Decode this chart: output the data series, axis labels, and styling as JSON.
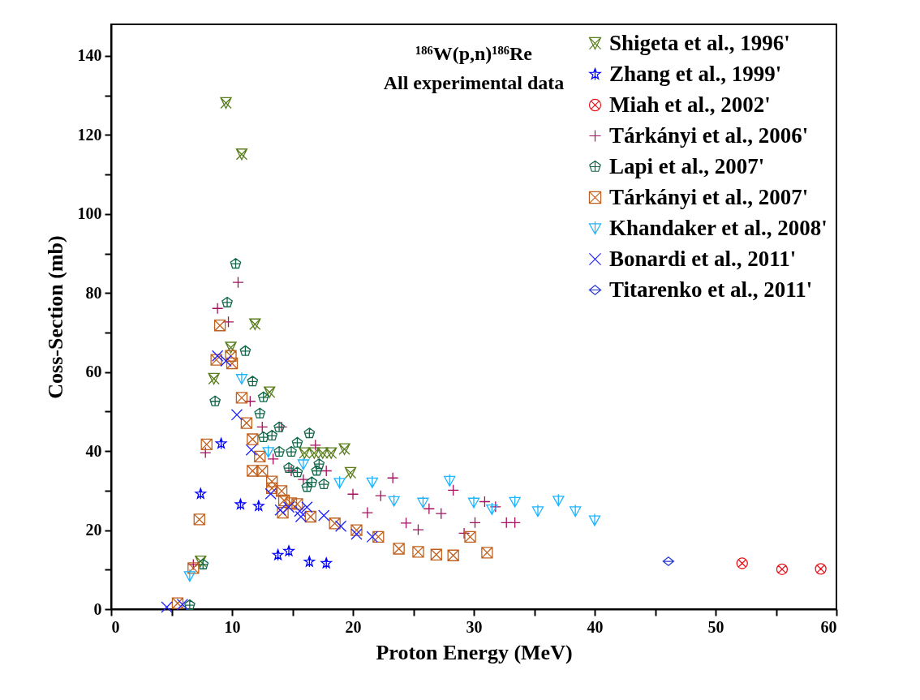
{
  "chart_data": {
    "type": "scatter",
    "title": "¹⁸⁶W(p,n)¹⁸⁶Re",
    "subtitle": "All experimental data",
    "xlabel": "Proton Energy (MeV)",
    "ylabel": "Coss-Section (mb)",
    "xlim": [
      0,
      60
    ],
    "xticks": [
      0,
      {
        "value": 5,
        "label": null
      },
      10,
      {
        "value": 15,
        "label": null
      },
      20,
      {
        "value": 25,
        "label": null
      },
      30,
      {
        "value": 35,
        "label": null
      },
      40,
      {
        "value": 45,
        "label": null
      },
      50,
      {
        "value": 55,
        "label": null
      },
      60
    ],
    "ylim": [
      0,
      148
    ],
    "yticks": [
      0,
      {
        "value": 10,
        "label": null
      },
      20,
      {
        "value": 30,
        "label": null
      },
      40,
      {
        "value": 50,
        "label": null
      },
      60,
      {
        "value": 70,
        "label": null
      },
      80,
      {
        "value": 90,
        "label": null
      },
      100,
      {
        "value": 110,
        "label": null
      },
      120,
      {
        "value": 130,
        "label": null
      },
      140
    ],
    "grid": false,
    "legend": "top right",
    "series": [
      {
        "name": "Shigeta et al., 1996'",
        "color": "#5a7d1e",
        "x": [
          9.5,
          10.8,
          11.9,
          9.9,
          8.5,
          13.1,
          16.0,
          16.8,
          17.5,
          18.2,
          19.3,
          19.8,
          7.4
        ],
        "values": [
          128.1,
          115.1,
          72.1,
          66.2,
          58.3,
          54.9,
          39.5,
          39.5,
          39.5,
          39.5,
          40.5,
          34.5,
          12.1
        ]
      },
      {
        "name": "Zhang et al., 1999'",
        "color": "#0000ff",
        "x": [
          9.1,
          7.4,
          10.7,
          12.2,
          13.8,
          14.7,
          16.4,
          17.8
        ],
        "values": [
          41.9,
          29.2,
          26.5,
          26.1,
          13.7,
          14.7,
          12.0,
          11.6
        ]
      },
      {
        "name": "Miah et al., 2002'",
        "color": "#e8161c",
        "x": [
          52.2,
          55.5,
          58.7
        ],
        "values": [
          11.6,
          10.1,
          10.2
        ]
      },
      {
        "name": "Tárkányi et al., 2006'",
        "color": "#a3125e",
        "x": [
          10.5,
          8.8,
          9.7,
          11.5,
          7.8,
          12.5,
          14.1,
          13.4,
          16.9,
          17.8,
          14.9,
          15.9,
          20.0,
          23.3,
          22.3,
          21.2,
          24.4,
          25.4,
          26.3,
          27.3,
          28.3,
          30.1,
          29.2,
          30.9,
          31.8,
          32.7,
          33.4,
          6.8
        ],
        "values": [
          82.7,
          76.1,
          72.7,
          52.6,
          39.6,
          46.1,
          46.1,
          38.0,
          41.5,
          35.0,
          35.0,
          32.8,
          29.1,
          33.2,
          28.7,
          24.4,
          21.8,
          20.1,
          25.4,
          24.2,
          30.1,
          21.9,
          19.2,
          27.2,
          25.9,
          21.9,
          21.9,
          11.3
        ]
      },
      {
        "name": "Lapi et al., 2007'",
        "color": "#13684a",
        "x": [
          10.3,
          9.6,
          11.1,
          11.7,
          8.6,
          12.6,
          12.3,
          12.6,
          13.3,
          13.9,
          16.4,
          15.4,
          13.9,
          14.9,
          14.7,
          15.4,
          17.2,
          17.0,
          16.6,
          16.2,
          17.6,
          7.6,
          6.5
        ],
        "values": [
          87.4,
          77.6,
          65.3,
          57.6,
          52.6,
          53.6,
          49.5,
          43.5,
          43.9,
          46.0,
          44.5,
          42.1,
          39.8,
          39.8,
          35.7,
          34.6,
          36.7,
          35.0,
          32.1,
          30.9,
          31.6,
          11.3,
          1.0
        ]
      },
      {
        "name": "Tárkányi et al., 2007'",
        "color": "#c0601e",
        "x": [
          9.0,
          8.7,
          9.9,
          10.0,
          10.8,
          11.2,
          7.9,
          11.7,
          12.3,
          11.7,
          12.5,
          13.3,
          13.3,
          14.1,
          14.3,
          14.2,
          14.9,
          15.4,
          16.5,
          18.5,
          20.3,
          7.3,
          6.8,
          5.5,
          22.1,
          23.8,
          25.4,
          26.9,
          28.3,
          29.7,
          31.1
        ],
        "values": [
          71.8,
          63.1,
          64.1,
          62.2,
          53.5,
          47.1,
          41.7,
          43.0,
          38.6,
          35.0,
          35.0,
          32.3,
          30.6,
          29.9,
          27.5,
          24.4,
          26.8,
          26.6,
          23.4,
          21.7,
          20.0,
          22.7,
          10.4,
          1.5,
          18.3,
          15.3,
          14.5,
          13.8,
          13.6,
          18.3,
          14.3
        ]
      },
      {
        "name": "Khandaker et al., 2008'",
        "color": "#1eb4ff",
        "x": [
          10.8,
          13.0,
          15.9,
          18.9,
          6.5,
          21.6,
          23.4,
          25.8,
          28.0,
          30.0,
          31.5,
          33.4,
          35.3,
          37.0,
          38.4,
          40.0
        ],
        "values": [
          58.3,
          39.8,
          36.7,
          32.0,
          8.4,
          32.1,
          27.4,
          27.0,
          32.5,
          27.0,
          25.3,
          27.2,
          24.8,
          27.5,
          24.8,
          22.5
        ]
      },
      {
        "name": "Bonardi et al., 2011'",
        "color": "#2020ff",
        "x": [
          8.8,
          9.5,
          10.4,
          11.6,
          13.2,
          14.0,
          14.7,
          15.6,
          16.2,
          15.7,
          17.6,
          19.0,
          20.3,
          21.6,
          4.6,
          5.9
        ],
        "values": [
          64.1,
          62.8,
          49.2,
          40.3,
          29.2,
          25.1,
          25.8,
          24.8,
          25.8,
          23.4,
          23.7,
          21.0,
          19.0,
          18.3,
          0.5,
          1.2
        ]
      },
      {
        "name": "Titarenko et al., 2011'",
        "color": "#2a3ad0",
        "x": [
          46.1
        ],
        "values": [
          12.1
        ]
      }
    ]
  }
}
